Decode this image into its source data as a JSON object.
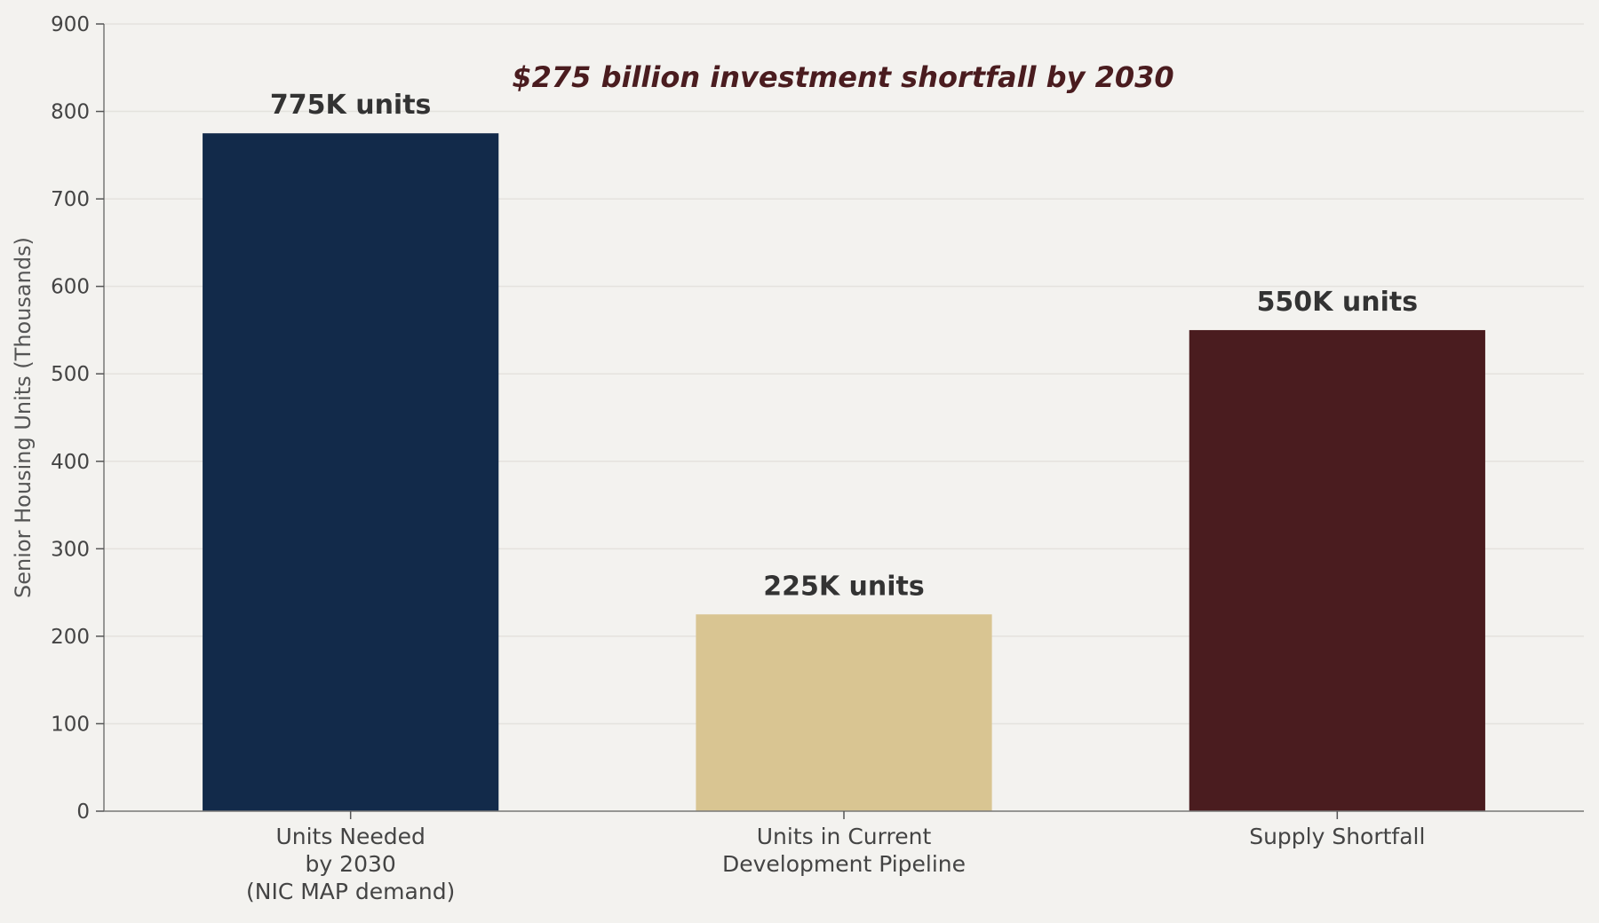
{
  "chart_data": {
    "type": "bar",
    "categories": [
      "Units Needed\nby 2030\n(NIC MAP demand)",
      "Units in Current\nDevelopment Pipeline",
      "Supply Shortfall"
    ],
    "values": [
      775,
      225,
      550
    ],
    "value_labels": [
      "775K units",
      "225K units",
      "550K units"
    ],
    "bar_colors": [
      "#122a4a",
      "#d9c592",
      "#4a1c1f"
    ],
    "title": "",
    "xlabel": "",
    "ylabel": "Senior Housing Units (Thousands)",
    "ylim": [
      0,
      900
    ],
    "yticks": [
      0,
      100,
      200,
      300,
      400,
      500,
      600,
      700,
      800,
      900
    ],
    "grid": "horizontal",
    "annotation": "$275 billion investment shortfall by 2030",
    "annotation_color": "#4a1c1f"
  }
}
